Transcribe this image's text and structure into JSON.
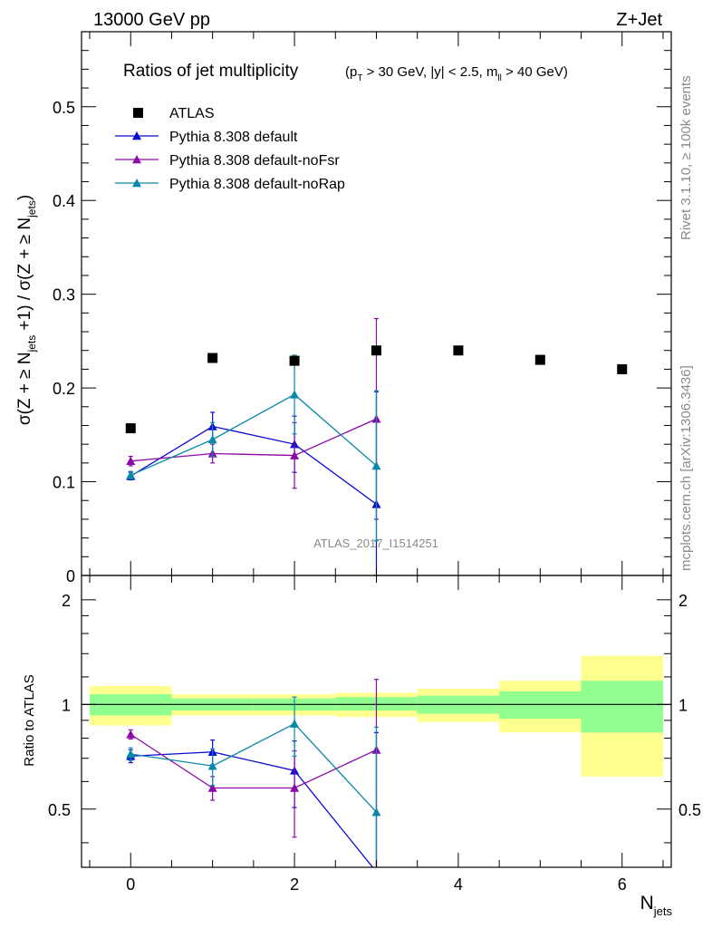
{
  "header": {
    "left": "13000 GeV pp",
    "right": "Z+Jet"
  },
  "side_labels": {
    "rivet": "Rivet 3.1.10, ≥ 100k events",
    "mcplots": "mcplots.cern.ch [arXiv:1306.3436]"
  },
  "watermark": "ATLAS_2017_I1514251",
  "colors": {
    "atlas": "#000000",
    "default": "#0a0ad2",
    "noFsr": "#8a0aa8",
    "noRap": "#0a88a8",
    "band_outer": "#ffff90",
    "band_inner": "#90ff90"
  },
  "chart_data": [
    {
      "type": "scatter",
      "title": "Ratios of jet multiplicity",
      "title_sub": "(p_T > 30 GeV, |y| < 2.5, m_ll > 40 GeV)",
      "ylabel": "σ(Z + ≥ N_jets +1) / σ(Z + ≥ N_jets)",
      "xlim": [
        -0.6,
        6.6
      ],
      "ylim": [
        0,
        0.58
      ],
      "y_ticks": [
        "0",
        "0.1",
        "0.2",
        "0.3",
        "0.4",
        "0.5"
      ],
      "legend_position": "top-left",
      "series": [
        {
          "name": "ATLAS",
          "x": [
            0,
            1,
            2,
            3,
            4,
            5,
            6
          ],
          "y": [
            0.157,
            0.232,
            0.229,
            0.24,
            0.24,
            0.23,
            0.22
          ]
        },
        {
          "name": "Pythia 8.308 default",
          "x": [
            0,
            1,
            2,
            3
          ],
          "y": [
            0.106,
            0.159,
            0.14,
            0.076
          ],
          "yerr": [
            0.004,
            0.015,
            0.03,
            0.12
          ]
        },
        {
          "name": "Pythia 8.308 default-noFsr",
          "x": [
            0,
            1,
            2,
            3
          ],
          "y": [
            0.122,
            0.13,
            0.128,
            0.167
          ],
          "yerr": [
            0.005,
            0.01,
            0.035,
            0.107
          ]
        },
        {
          "name": "Pythia 8.308 default-noRap",
          "x": [
            0,
            1,
            2,
            3
          ],
          "y": [
            0.107,
            0.145,
            0.193,
            0.117
          ],
          "yerr": [
            0.004,
            0.018,
            0.042,
            0.08
          ]
        }
      ]
    },
    {
      "type": "scatter",
      "ylabel": "Ratio to ATLAS",
      "xlabel": "N_jets",
      "xlim": [
        -0.6,
        6.6
      ],
      "ylim": [
        0.34,
        2.35
      ],
      "y_scale": "log",
      "x_ticks": [
        "0",
        "2",
        "4",
        "6"
      ],
      "y_ticks_left": [
        "0.5",
        "1",
        "2"
      ],
      "y_ticks_right": [
        "0.5",
        "1",
        "2"
      ],
      "reference_line": 1,
      "bands": {
        "x_edges": [
          -0.5,
          0.5,
          1.5,
          2.5,
          3.5,
          4.5,
          5.5,
          6.5
        ],
        "outer_lo": [
          0.87,
          0.93,
          0.93,
          0.92,
          0.89,
          0.83,
          0.62
        ],
        "outer_hi": [
          1.13,
          1.07,
          1.07,
          1.08,
          1.11,
          1.17,
          1.38
        ],
        "inner_lo": [
          0.93,
          0.96,
          0.96,
          0.96,
          0.94,
          0.91,
          0.83
        ],
        "inner_hi": [
          1.07,
          1.04,
          1.04,
          1.05,
          1.06,
          1.09,
          1.17
        ]
      },
      "series": [
        {
          "name": "Pythia 8.308 default",
          "x": [
            0,
            1,
            2,
            3
          ],
          "y": [
            0.71,
            0.73,
            0.645,
            0.33
          ],
          "yerr": [
            0.03,
            0.06,
            0.14,
            0.5
          ]
        },
        {
          "name": "Pythia 8.308 default-noFsr",
          "x": [
            0,
            1,
            2,
            3
          ],
          "y": [
            0.82,
            0.575,
            0.575,
            0.74
          ],
          "yerr": [
            0.025,
            0.045,
            0.16,
            0.44
          ]
        },
        {
          "name": "Pythia 8.308 default-noRap",
          "x": [
            0,
            1,
            2,
            3
          ],
          "y": [
            0.72,
            0.665,
            0.88,
            0.49
          ],
          "yerr": [
            0.03,
            0.08,
            0.17,
            0.37
          ]
        }
      ]
    }
  ]
}
